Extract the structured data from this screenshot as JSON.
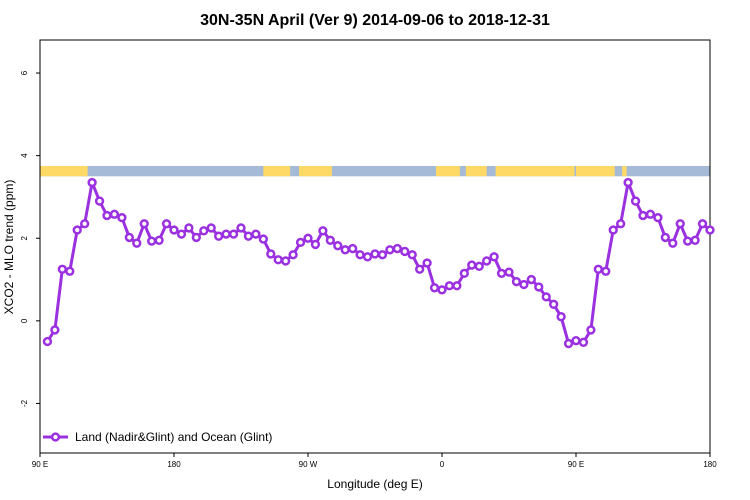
{
  "chart_data": {
    "type": "line",
    "title": "30N-35N April (Ver 9)   2014-09-06 to 2018-12-31",
    "xlabel": "Longitude (deg E)",
    "ylabel": "XCO2 - MLO trend (ppm)",
    "xlim": [
      90,
      540
    ],
    "ylim": [
      -3.2,
      6.8
    ],
    "x_ticks": [
      {
        "value": 90,
        "label": "90 E"
      },
      {
        "value": 180,
        "label": "180"
      },
      {
        "value": 270,
        "label": "90 W"
      },
      {
        "value": 360,
        "label": "0"
      },
      {
        "value": 450,
        "label": "90 E"
      },
      {
        "value": 540,
        "label": "180"
      }
    ],
    "y_ticks": [
      {
        "value": -2,
        "label": "-2"
      },
      {
        "value": 0,
        "label": "0"
      },
      {
        "value": 2,
        "label": "2"
      },
      {
        "value": 4,
        "label": "4"
      },
      {
        "value": 6,
        "label": "6"
      }
    ],
    "legend": {
      "position": "bottom-left"
    },
    "series": [
      {
        "name": "Land (Nadir&Glint) and Ocean (Glint)",
        "color": "#9b30e0",
        "x": [
          95,
          100,
          105,
          110,
          115,
          120,
          125,
          130,
          135,
          140,
          145,
          150,
          155,
          160,
          165,
          170,
          175,
          180,
          185,
          190,
          195,
          200,
          205,
          210,
          215,
          220,
          225,
          230,
          235,
          240,
          245,
          250,
          255,
          260,
          265,
          270,
          275,
          280,
          285,
          290,
          295,
          300,
          305,
          310,
          315,
          320,
          325,
          330,
          335,
          340,
          345,
          350,
          355,
          360,
          365,
          370,
          375,
          380,
          385,
          390,
          395,
          400,
          405,
          410,
          415,
          420,
          425,
          430,
          435,
          440,
          445,
          450,
          455,
          460,
          465,
          470,
          475,
          480,
          485,
          490,
          495,
          500,
          505,
          510,
          515,
          520,
          525,
          530,
          535,
          540
        ],
        "y": [
          -0.5,
          -0.22,
          1.25,
          1.2,
          2.2,
          2.35,
          3.35,
          2.9,
          2.55,
          2.58,
          2.5,
          2.02,
          1.88,
          2.35,
          1.93,
          1.95,
          2.35,
          2.2,
          2.1,
          2.25,
          2.02,
          2.18,
          2.25,
          2.05,
          2.1,
          2.1,
          2.25,
          2.05,
          2.1,
          1.98,
          1.62,
          1.48,
          1.45,
          1.6,
          1.9,
          2.0,
          1.85,
          2.18,
          1.95,
          1.82,
          1.72,
          1.75,
          1.6,
          1.55,
          1.62,
          1.6,
          1.72,
          1.75,
          1.68,
          1.6,
          1.25,
          1.4,
          0.8,
          0.75,
          0.85,
          0.85,
          1.15,
          1.35,
          1.32,
          1.45,
          1.55,
          1.15,
          1.18,
          0.95,
          0.88,
          1.0,
          0.82,
          0.58,
          0.4,
          0.1,
          -0.55,
          -0.48,
          -0.52,
          -0.22,
          1.25,
          1.2,
          2.2,
          2.35,
          3.35,
          2.9,
          2.55,
          2.58,
          2.5,
          2.02,
          1.88,
          2.35,
          1.93,
          1.95,
          2.35,
          2.2
        ]
      }
    ],
    "surface_band": {
      "y_range": [
        3.5,
        3.75
      ],
      "land_color": "#ffd966",
      "ocean_color": "#a4bad6",
      "land_segments": [
        [
          90,
          122
        ],
        [
          240,
          258
        ],
        [
          264,
          286
        ],
        [
          356,
          372
        ],
        [
          376,
          390
        ],
        [
          396,
          449
        ],
        [
          450,
          476
        ],
        [
          481,
          484
        ]
      ]
    }
  }
}
